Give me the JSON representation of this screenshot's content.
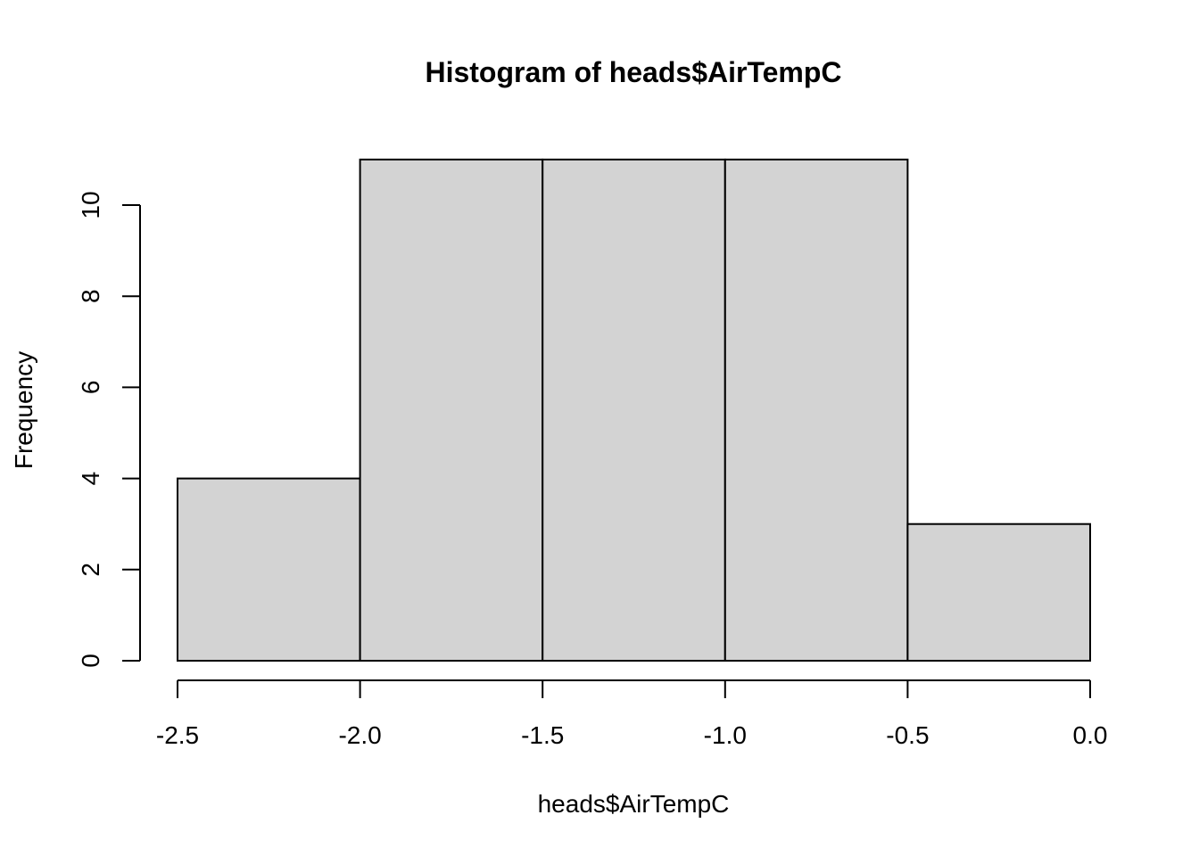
{
  "chart_data": {
    "type": "bar",
    "title": "Histogram of heads$AirTempC",
    "xlabel": "heads$AirTempC",
    "ylabel": "Frequency",
    "bins": [
      {
        "from": -2.5,
        "to": -2.0,
        "count": 4
      },
      {
        "from": -2.0,
        "to": -1.5,
        "count": 11
      },
      {
        "from": -1.5,
        "to": -1.0,
        "count": 11
      },
      {
        "from": -1.0,
        "to": -0.5,
        "count": 11
      },
      {
        "from": -0.5,
        "to": 0.0,
        "count": 3
      }
    ],
    "xlim": [
      -2.5,
      0.0
    ],
    "ylim": [
      0,
      11
    ],
    "x_ticks": [
      "-2.5",
      "-2.0",
      "-1.5",
      "-1.0",
      "-0.5",
      "0.0"
    ],
    "y_ticks": [
      "0",
      "2",
      "4",
      "6",
      "8",
      "10"
    ],
    "grid": false,
    "colors": {
      "bar_fill": "#d3d3d3",
      "bar_stroke": "#000000"
    }
  }
}
